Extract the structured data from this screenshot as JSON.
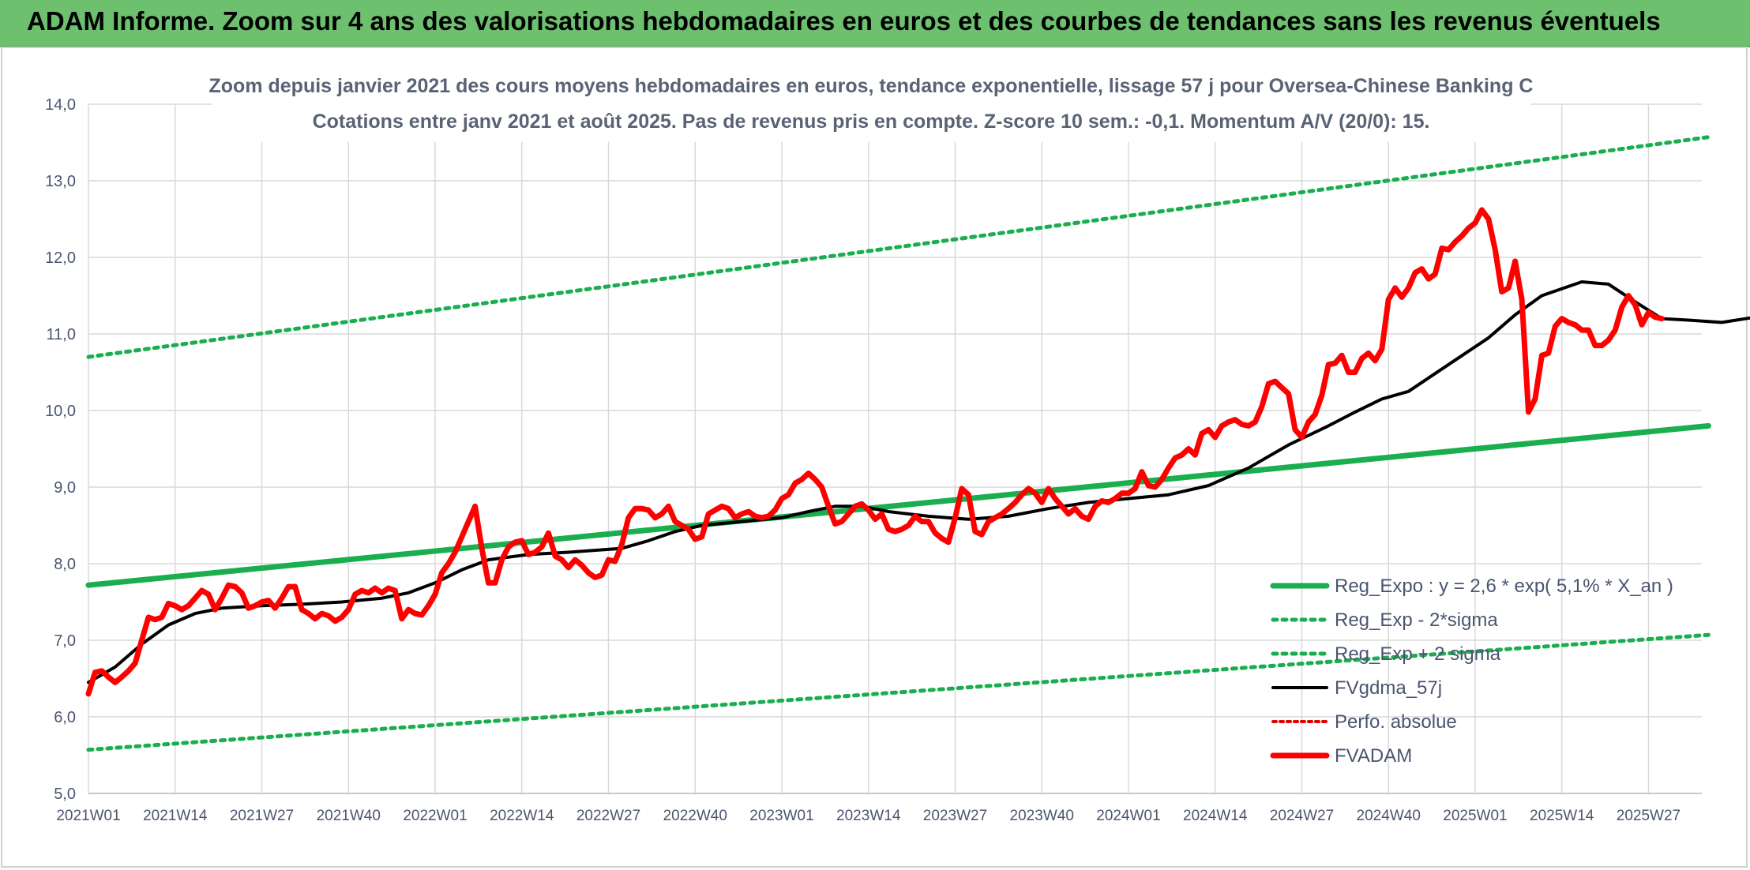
{
  "header": {
    "title": "ADAM Informe. Zoom sur 4 ans des valorisations hebdomadaires en euros et des courbes de tendances sans les revenus éventuels"
  },
  "chart_data": {
    "type": "line",
    "title": "Zoom depuis janvier 2021 des cours moyens hebdomadaires en euros, tendance exponentielle, lissage 57 j pour Oversea-Chinese Banking C",
    "subtitle": "Cotations entre janv 2021 et août 2025. Pas de revenus pris en compte. Z-score 10 sem.: -0,1. Momentum A/V (20/0): 15.",
    "ylim": [
      5.0,
      14.0
    ],
    "y_ticks": [
      "5,0",
      "6,0",
      "7,0",
      "8,0",
      "9,0",
      "10,0",
      "11,0",
      "12,0",
      "13,0",
      "14,0"
    ],
    "x_ticks": [
      "2021W01",
      "2021W14",
      "2021W27",
      "2021W40",
      "2022W01",
      "2022W14",
      "2022W27",
      "2022W40",
      "2023W01",
      "2023W14",
      "2023W27",
      "2023W40",
      "2024W01",
      "2024W14",
      "2024W27",
      "2024W40",
      "2025W01",
      "2025W14",
      "2025W27"
    ],
    "grid": true,
    "legend_position": "bottom-right",
    "colors": {
      "trend": "#1aae4f",
      "band": "#1aae4f",
      "smooth": "#000000",
      "price": "#ff0000",
      "perf": "#e00000"
    },
    "series": [
      {
        "name": "Reg_Expo : y = 2,6 * exp( 5,1% *  X_an )",
        "style": "solid-green",
        "points": [
          [
            0,
            7.72
          ],
          [
            243,
            9.8
          ]
        ]
      },
      {
        "name": "Reg_Exp - 2*sigma",
        "style": "dotted-green",
        "points": [
          [
            0,
            5.57
          ],
          [
            243,
            7.07
          ]
        ]
      },
      {
        "name": "Reg_Exp + 2 sigma",
        "style": "dotted-green",
        "points": [
          [
            0,
            10.7
          ],
          [
            243,
            13.57
          ]
        ]
      },
      {
        "name": "FVgdma_57j",
        "style": "solid-black",
        "points": [
          [
            0,
            6.45
          ],
          [
            4,
            6.65
          ],
          [
            8,
            6.95
          ],
          [
            12,
            7.2
          ],
          [
            16,
            7.35
          ],
          [
            20,
            7.42
          ],
          [
            26,
            7.45
          ],
          [
            32,
            7.47
          ],
          [
            38,
            7.5
          ],
          [
            44,
            7.55
          ],
          [
            48,
            7.62
          ],
          [
            52,
            7.75
          ],
          [
            56,
            7.92
          ],
          [
            60,
            8.05
          ],
          [
            66,
            8.12
          ],
          [
            72,
            8.15
          ],
          [
            80,
            8.2
          ],
          [
            84,
            8.3
          ],
          [
            88,
            8.42
          ],
          [
            92,
            8.5
          ],
          [
            98,
            8.55
          ],
          [
            104,
            8.6
          ],
          [
            108,
            8.68
          ],
          [
            112,
            8.75
          ],
          [
            116,
            8.75
          ],
          [
            120,
            8.68
          ],
          [
            126,
            8.62
          ],
          [
            132,
            8.58
          ],
          [
            138,
            8.62
          ],
          [
            144,
            8.72
          ],
          [
            150,
            8.8
          ],
          [
            156,
            8.85
          ],
          [
            162,
            8.9
          ],
          [
            168,
            9.02
          ],
          [
            174,
            9.25
          ],
          [
            180,
            9.55
          ],
          [
            186,
            9.8
          ],
          [
            190,
            9.98
          ],
          [
            194,
            10.15
          ],
          [
            198,
            10.25
          ],
          [
            204,
            10.6
          ],
          [
            210,
            10.95
          ],
          [
            214,
            11.25
          ],
          [
            218,
            11.5
          ],
          [
            224,
            11.68
          ],
          [
            228,
            11.65
          ],
          [
            232,
            11.42
          ],
          [
            236,
            11.2
          ],
          [
            240,
            11.18
          ],
          [
            245,
            11.15
          ],
          [
            250,
            11.22
          ],
          [
            254,
            11.2
          ]
        ]
      },
      {
        "name": "Perfo. absolue",
        "style": "dotted-red",
        "points": []
      },
      {
        "name": "FVADAM",
        "style": "solid-red",
        "points": [
          [
            0,
            6.3
          ],
          [
            1,
            6.58
          ],
          [
            2,
            6.6
          ],
          [
            3,
            6.52
          ],
          [
            4,
            6.45
          ],
          [
            5,
            6.52
          ],
          [
            6,
            6.6
          ],
          [
            7,
            6.7
          ],
          [
            8,
            7.0
          ],
          [
            9,
            7.3
          ],
          [
            10,
            7.27
          ],
          [
            11,
            7.3
          ],
          [
            12,
            7.48
          ],
          [
            13,
            7.45
          ],
          [
            14,
            7.4
          ],
          [
            15,
            7.45
          ],
          [
            16,
            7.55
          ],
          [
            17,
            7.65
          ],
          [
            18,
            7.6
          ],
          [
            19,
            7.4
          ],
          [
            20,
            7.55
          ],
          [
            21,
            7.72
          ],
          [
            22,
            7.7
          ],
          [
            23,
            7.62
          ],
          [
            24,
            7.42
          ],
          [
            25,
            7.45
          ],
          [
            26,
            7.5
          ],
          [
            27,
            7.52
          ],
          [
            28,
            7.42
          ],
          [
            29,
            7.55
          ],
          [
            30,
            7.7
          ],
          [
            31,
            7.7
          ],
          [
            32,
            7.4
          ],
          [
            33,
            7.35
          ],
          [
            34,
            7.28
          ],
          [
            35,
            7.35
          ],
          [
            36,
            7.32
          ],
          [
            37,
            7.25
          ],
          [
            38,
            7.3
          ],
          [
            39,
            7.4
          ],
          [
            40,
            7.6
          ],
          [
            41,
            7.65
          ],
          [
            42,
            7.62
          ],
          [
            43,
            7.68
          ],
          [
            44,
            7.62
          ],
          [
            45,
            7.68
          ],
          [
            46,
            7.65
          ],
          [
            47,
            7.28
          ],
          [
            48,
            7.4
          ],
          [
            49,
            7.35
          ],
          [
            50,
            7.33
          ],
          [
            51,
            7.45
          ],
          [
            52,
            7.6
          ],
          [
            53,
            7.88
          ],
          [
            54,
            8.0
          ],
          [
            55,
            8.15
          ],
          [
            56,
            8.35
          ],
          [
            57,
            8.55
          ],
          [
            58,
            8.75
          ],
          [
            59,
            8.2
          ],
          [
            60,
            7.75
          ],
          [
            61,
            7.75
          ],
          [
            62,
            8.05
          ],
          [
            63,
            8.22
          ],
          [
            64,
            8.28
          ],
          [
            65,
            8.3
          ],
          [
            66,
            8.12
          ],
          [
            67,
            8.15
          ],
          [
            68,
            8.22
          ],
          [
            69,
            8.4
          ],
          [
            70,
            8.1
          ],
          [
            71,
            8.05
          ],
          [
            72,
            7.95
          ],
          [
            73,
            8.05
          ],
          [
            74,
            7.98
          ],
          [
            75,
            7.88
          ],
          [
            76,
            7.82
          ],
          [
            77,
            7.85
          ],
          [
            78,
            8.05
          ],
          [
            79,
            8.03
          ],
          [
            80,
            8.25
          ],
          [
            81,
            8.6
          ],
          [
            82,
            8.72
          ],
          [
            83,
            8.72
          ],
          [
            84,
            8.7
          ],
          [
            85,
            8.6
          ],
          [
            86,
            8.65
          ],
          [
            87,
            8.75
          ],
          [
            88,
            8.55
          ],
          [
            89,
            8.5
          ],
          [
            90,
            8.45
          ],
          [
            91,
            8.32
          ],
          [
            92,
            8.35
          ],
          [
            93,
            8.65
          ],
          [
            94,
            8.7
          ],
          [
            95,
            8.75
          ],
          [
            96,
            8.72
          ],
          [
            97,
            8.6
          ],
          [
            98,
            8.65
          ],
          [
            99,
            8.68
          ],
          [
            100,
            8.62
          ],
          [
            101,
            8.6
          ],
          [
            102,
            8.62
          ],
          [
            103,
            8.7
          ],
          [
            104,
            8.85
          ],
          [
            105,
            8.9
          ],
          [
            106,
            9.05
          ],
          [
            107,
            9.1
          ],
          [
            108,
            9.18
          ],
          [
            109,
            9.1
          ],
          [
            110,
            9.0
          ],
          [
            111,
            8.75
          ],
          [
            112,
            8.52
          ],
          [
            113,
            8.55
          ],
          [
            114,
            8.65
          ],
          [
            115,
            8.75
          ],
          [
            116,
            8.78
          ],
          [
            117,
            8.7
          ],
          [
            118,
            8.58
          ],
          [
            119,
            8.65
          ],
          [
            120,
            8.45
          ],
          [
            121,
            8.42
          ],
          [
            122,
            8.45
          ],
          [
            123,
            8.5
          ],
          [
            124,
            8.62
          ],
          [
            125,
            8.55
          ],
          [
            126,
            8.55
          ],
          [
            127,
            8.4
          ],
          [
            128,
            8.33
          ],
          [
            129,
            8.28
          ],
          [
            130,
            8.6
          ],
          [
            131,
            8.98
          ],
          [
            132,
            8.9
          ],
          [
            133,
            8.42
          ],
          [
            134,
            8.38
          ],
          [
            135,
            8.55
          ],
          [
            136,
            8.6
          ],
          [
            137,
            8.65
          ],
          [
            138,
            8.72
          ],
          [
            139,
            8.8
          ],
          [
            140,
            8.9
          ],
          [
            141,
            8.98
          ],
          [
            142,
            8.92
          ],
          [
            143,
            8.8
          ],
          [
            144,
            8.98
          ],
          [
            145,
            8.85
          ],
          [
            146,
            8.75
          ],
          [
            147,
            8.65
          ],
          [
            148,
            8.72
          ],
          [
            149,
            8.62
          ],
          [
            150,
            8.58
          ],
          [
            151,
            8.75
          ],
          [
            152,
            8.82
          ],
          [
            153,
            8.8
          ],
          [
            154,
            8.85
          ],
          [
            155,
            8.92
          ],
          [
            156,
            8.92
          ],
          [
            157,
            8.98
          ],
          [
            158,
            9.2
          ],
          [
            159,
            9.02
          ],
          [
            160,
            9.0
          ],
          [
            161,
            9.1
          ],
          [
            162,
            9.25
          ],
          [
            163,
            9.38
          ],
          [
            164,
            9.42
          ],
          [
            165,
            9.5
          ],
          [
            166,
            9.42
          ],
          [
            167,
            9.7
          ],
          [
            168,
            9.75
          ],
          [
            169,
            9.65
          ],
          [
            170,
            9.8
          ],
          [
            171,
            9.85
          ],
          [
            172,
            9.88
          ],
          [
            173,
            9.82
          ],
          [
            174,
            9.8
          ],
          [
            175,
            9.85
          ],
          [
            176,
            10.05
          ],
          [
            177,
            10.35
          ],
          [
            178,
            10.38
          ],
          [
            179,
            10.3
          ],
          [
            180,
            10.22
          ],
          [
            181,
            9.75
          ],
          [
            182,
            9.65
          ],
          [
            183,
            9.85
          ],
          [
            184,
            9.95
          ],
          [
            185,
            10.2
          ],
          [
            186,
            10.6
          ],
          [
            187,
            10.62
          ],
          [
            188,
            10.72
          ],
          [
            189,
            10.5
          ],
          [
            190,
            10.5
          ],
          [
            191,
            10.68
          ],
          [
            192,
            10.75
          ],
          [
            193,
            10.65
          ],
          [
            194,
            10.8
          ],
          [
            195,
            11.45
          ],
          [
            196,
            11.6
          ],
          [
            197,
            11.48
          ],
          [
            198,
            11.6
          ],
          [
            199,
            11.8
          ],
          [
            200,
            11.85
          ],
          [
            201,
            11.72
          ],
          [
            202,
            11.78
          ],
          [
            203,
            12.12
          ],
          [
            204,
            12.1
          ],
          [
            205,
            12.2
          ],
          [
            206,
            12.28
          ],
          [
            207,
            12.38
          ],
          [
            208,
            12.45
          ],
          [
            209,
            12.62
          ],
          [
            210,
            12.5
          ],
          [
            211,
            12.1
          ],
          [
            212,
            11.55
          ],
          [
            213,
            11.6
          ],
          [
            214,
            11.95
          ],
          [
            215,
            11.45
          ],
          [
            216,
            9.98
          ],
          [
            217,
            10.15
          ],
          [
            218,
            10.72
          ],
          [
            219,
            10.75
          ],
          [
            220,
            11.1
          ],
          [
            221,
            11.2
          ],
          [
            222,
            11.15
          ],
          [
            223,
            11.12
          ],
          [
            224,
            11.05
          ],
          [
            225,
            11.05
          ],
          [
            226,
            10.85
          ],
          [
            227,
            10.85
          ],
          [
            228,
            10.92
          ],
          [
            229,
            11.05
          ],
          [
            230,
            11.35
          ],
          [
            231,
            11.5
          ],
          [
            232,
            11.38
          ],
          [
            233,
            11.12
          ],
          [
            234,
            11.28
          ],
          [
            235,
            11.22
          ],
          [
            236,
            11.2
          ]
        ]
      }
    ]
  }
}
